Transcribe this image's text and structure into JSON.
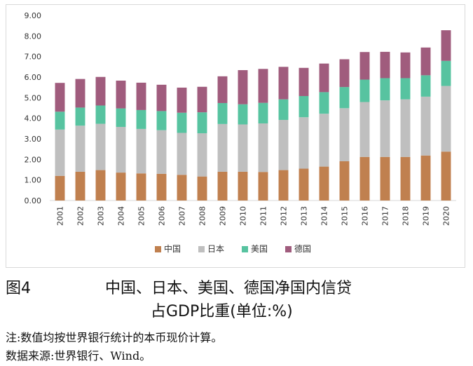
{
  "chart_data": {
    "type": "bar",
    "stacked": true,
    "categories": [
      "2001",
      "2002",
      "2003",
      "2004",
      "2005",
      "2006",
      "2007",
      "2008",
      "2009",
      "2010",
      "2011",
      "2012",
      "2013",
      "2014",
      "2015",
      "2016",
      "2017",
      "2018",
      "2019",
      "2020"
    ],
    "series": [
      {
        "name": "中国",
        "color": "#c0804f",
        "values": [
          1.2,
          1.4,
          1.48,
          1.36,
          1.32,
          1.3,
          1.25,
          1.17,
          1.4,
          1.4,
          1.39,
          1.48,
          1.55,
          1.65,
          1.91,
          2.12,
          2.12,
          2.12,
          2.19,
          2.38
        ]
      },
      {
        "name": "日本",
        "color": "#bfbfbf",
        "values": [
          2.25,
          2.24,
          2.25,
          2.22,
          2.16,
          2.12,
          2.04,
          2.1,
          2.32,
          2.3,
          2.36,
          2.44,
          2.5,
          2.57,
          2.58,
          2.67,
          2.75,
          2.8,
          2.86,
          3.19
        ]
      },
      {
        "name": "美国",
        "color": "#57c3a0",
        "values": [
          0.87,
          0.88,
          0.89,
          0.9,
          0.92,
          0.93,
          0.98,
          1.02,
          1.02,
          0.98,
          1.0,
          1.0,
          1.03,
          1.05,
          1.03,
          1.09,
          1.08,
          1.03,
          1.04,
          1.22
        ]
      },
      {
        "name": "德国",
        "color": "#a05c7d",
        "values": [
          1.4,
          1.39,
          1.39,
          1.35,
          1.33,
          1.28,
          1.22,
          1.24,
          1.3,
          1.66,
          1.65,
          1.58,
          1.37,
          1.39,
          1.35,
          1.34,
          1.28,
          1.25,
          1.35,
          1.49
        ]
      }
    ],
    "yticks": [
      "0.00",
      "1.00",
      "2.00",
      "3.00",
      "4.00",
      "5.00",
      "6.00",
      "7.00",
      "8.00",
      "9.00"
    ],
    "ylim": [
      0,
      9
    ],
    "title": "",
    "xlabel": "",
    "ylabel": "",
    "legend": "bottom",
    "grid": false
  },
  "caption": {
    "figure_label": "图4",
    "title_line1": "中国、日本、美国、德国净国内信贷",
    "title_line2": "占GDP比重(单位:%)"
  },
  "notes": {
    "note_line": "注:数值均按世界银行统计的本币现价计算。",
    "source_line": "数据来源:世界银行、Wind。"
  }
}
